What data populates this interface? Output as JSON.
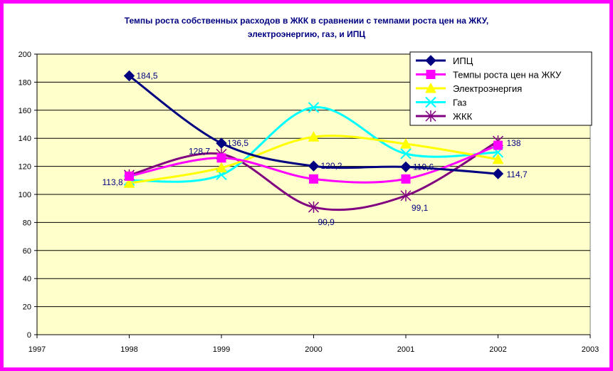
{
  "chart_data": {
    "type": "line",
    "title_line1": "Темпы роста собственных расходов в ЖКК в сравнении с темпами роста цен на ЖКУ,",
    "title_line2": "электроэнергию, газ, и ИПЦ",
    "x": [
      1997,
      1998,
      1999,
      2000,
      2001,
      2002,
      2003
    ],
    "xlim": [
      1997,
      2003
    ],
    "ylim": [
      0,
      200
    ],
    "yticks": [
      0,
      20,
      40,
      60,
      80,
      100,
      120,
      140,
      160,
      180,
      200
    ],
    "grid": true,
    "legend_position": "top-right",
    "plot_background": "#ffffcc",
    "series": [
      {
        "name": "ИПЦ",
        "color": "#000080",
        "marker": "diamond",
        "x": [
          1998,
          1999,
          2000,
          2001,
          2002
        ],
        "values": [
          184.5,
          136.5,
          120.2,
          119.6,
          114.7
        ],
        "labels": [
          "184,5",
          "136,5",
          "120,2",
          "119,6",
          "114,7"
        ]
      },
      {
        "name": "Темпы роста цен на ЖКУ",
        "color": "#ff00ff",
        "marker": "square",
        "x": [
          1998,
          1999,
          2000,
          2001,
          2002
        ],
        "values": [
          113,
          126,
          111,
          111,
          135
        ]
      },
      {
        "name": "Электроэнергия",
        "color": "#ffff00",
        "marker": "triangle",
        "x": [
          1998,
          1999,
          2000,
          2001,
          2002
        ],
        "values": [
          108,
          119,
          141,
          136,
          125
        ]
      },
      {
        "name": "Газ",
        "color": "#00ffff",
        "marker": "x",
        "x": [
          1998,
          1999,
          2000,
          2001,
          2002
        ],
        "values": [
          110,
          114,
          162,
          129,
          130
        ]
      },
      {
        "name": "ЖКК",
        "color": "#800080",
        "marker": "star",
        "x": [
          1998,
          1999,
          2000,
          2001,
          2002
        ],
        "values": [
          113.8,
          128.7,
          90.9,
          99.1,
          138
        ],
        "labels": [
          "113,8",
          "128,7",
          "90,9",
          "99,1",
          "138"
        ]
      }
    ]
  }
}
